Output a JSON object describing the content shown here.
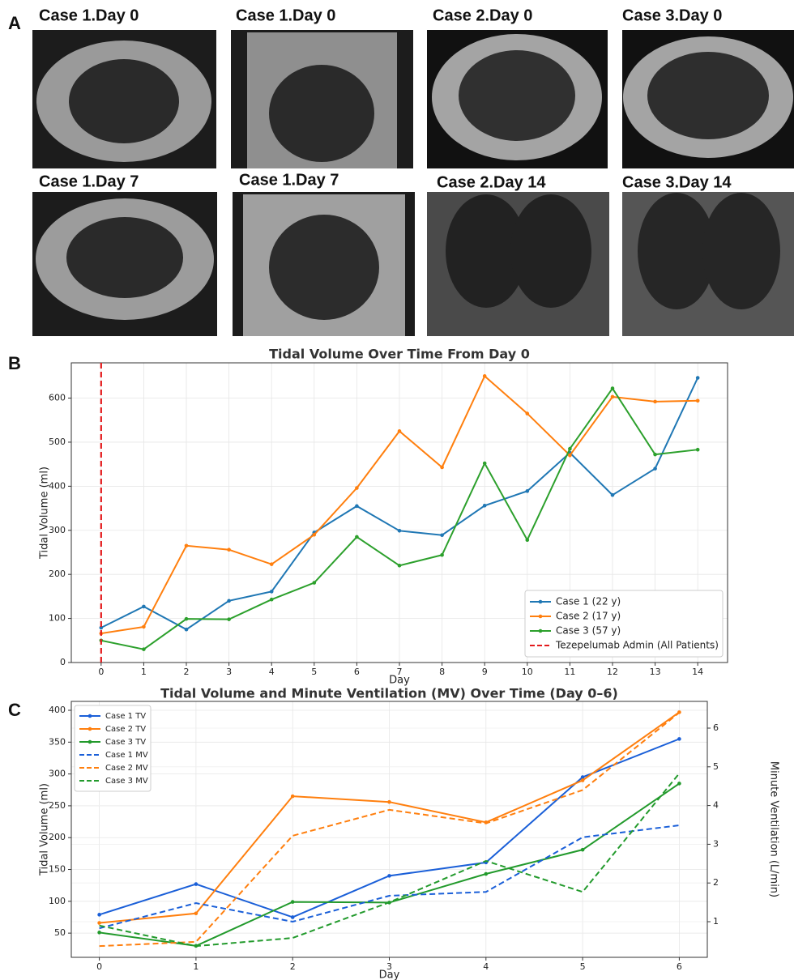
{
  "panel_labels": [
    "A",
    "B",
    "C"
  ],
  "image_captions": [
    "Case 1.Day 0",
    "Case 1.Day 0",
    "Case 2.Day 0",
    "Case 3.Day 0",
    "Case 1.Day 7",
    "Case 1.Day 7",
    "Case 2.Day 14",
    "Case 3.Day 14"
  ],
  "chart_data": [
    {
      "type": "line",
      "title": "Tidal Volume Over Time From Day 0",
      "x_label": "Day",
      "y_label": "Tidal Volume (ml)",
      "x": [
        0,
        1,
        2,
        3,
        4,
        5,
        6,
        7,
        8,
        9,
        10,
        11,
        12,
        13,
        14
      ],
      "xlim": [
        -0.7,
        14.7
      ],
      "xticks": [
        0,
        1,
        2,
        3,
        4,
        5,
        6,
        7,
        8,
        9,
        10,
        11,
        12,
        13,
        14
      ],
      "ylim": [
        0,
        680
      ],
      "yticks": [
        0,
        100,
        200,
        300,
        400,
        500,
        600
      ],
      "grid": true,
      "legend": "lower right",
      "markers": true,
      "series": [
        {
          "name": "Case 1 (22 y)",
          "color": "#1f77b4",
          "values": [
            79,
            127,
            75,
            140,
            161,
            295,
            355,
            299,
            289,
            356,
            389,
            476,
            380,
            440,
            646
          ]
        },
        {
          "name": "Case 2 (17 y)",
          "color": "#ff7f0e",
          "values": [
            66,
            81,
            265,
            256,
            223,
            290,
            396,
            525,
            443,
            650,
            565,
            470,
            603,
            592,
            594
          ]
        },
        {
          "name": "Case 3 (57 y)",
          "color": "#2ca02c",
          "values": [
            50,
            30,
            99,
            98,
            143,
            181,
            285,
            220,
            244,
            452,
            278,
            485,
            622,
            472,
            483
          ]
        }
      ],
      "vline": {
        "x": 0,
        "name": "Tezepelumab Admin (All Patients)",
        "color": "#e31a1c",
        "linestyle": "dashed"
      }
    },
    {
      "type": "line",
      "title": "Tidal Volume and Minute Ventilation (MV) Over Time (Day 0–6)",
      "x_label": "Day",
      "y_label": "Tidal Volume (ml)",
      "y2_label": "Minute Ventilation (L/min)",
      "x": [
        0,
        1,
        2,
        3,
        4,
        5,
        6
      ],
      "xlim": [
        -0.29,
        6.29
      ],
      "xticks": [
        0,
        1,
        2,
        3,
        4,
        5,
        6
      ],
      "ylim": [
        12,
        414
      ],
      "yticks": [
        50,
        100,
        150,
        200,
        250,
        300,
        350,
        400
      ],
      "y2lim": [
        0.08,
        6.69
      ],
      "y2ticks": [
        1,
        2,
        3,
        4,
        5,
        6
      ],
      "grid": true,
      "legend": "upper left",
      "markers": true,
      "series": [
        {
          "name": "Case 1 TV",
          "color": "#1a5fd8",
          "values": [
            79,
            127,
            75,
            140,
            161,
            295,
            355
          ]
        },
        {
          "name": "Case 2 TV",
          "color": "#ff7f0e",
          "values": [
            66,
            81,
            265,
            256,
            224,
            290,
            397
          ]
        },
        {
          "name": "Case 3 TV",
          "color": "#229a2c",
          "values": [
            51,
            30,
            99,
            98,
            143,
            181,
            285
          ]
        },
        {
          "name": "Case 1 MV",
          "color": "#1a5fd8",
          "axis": "y2",
          "linestyle": "dashed",
          "values": [
            0.83,
            1.48,
            1.0,
            1.67,
            1.77,
            3.18,
            3.49
          ]
        },
        {
          "name": "Case 2 MV",
          "color": "#ff7f0e",
          "axis": "y2",
          "linestyle": "dashed",
          "values": [
            0.37,
            0.48,
            3.22,
            3.89,
            3.54,
            4.4,
            6.4
          ]
        },
        {
          "name": "Case 3 MV",
          "color": "#229a2c",
          "axis": "y2",
          "linestyle": "dashed",
          "values": [
            0.9,
            0.37,
            0.58,
            1.5,
            2.57,
            1.77,
            4.83
          ]
        }
      ]
    }
  ]
}
